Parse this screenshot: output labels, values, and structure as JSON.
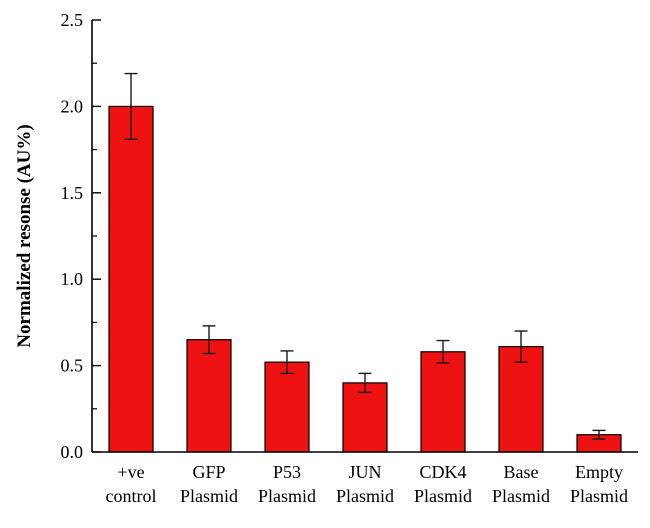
{
  "chart_data": {
    "type": "bar",
    "title": "",
    "xlabel": "",
    "ylabel": "Normalized resonse (AU%)",
    "categories": [
      [
        "+ve",
        "control"
      ],
      [
        "GFP",
        "Plasmid"
      ],
      [
        "P53",
        "Plasmid"
      ],
      [
        "JUN",
        "Plasmid"
      ],
      [
        "CDK4",
        "Plasmid"
      ],
      [
        "Base",
        "Plasmid"
      ],
      [
        "Empty",
        "Plasmid"
      ]
    ],
    "values": [
      2.0,
      0.65,
      0.52,
      0.4,
      0.58,
      0.61,
      0.1
    ],
    "errors": [
      0.19,
      0.08,
      0.065,
      0.055,
      0.065,
      0.09,
      0.025
    ],
    "ylim": [
      0,
      2.5
    ],
    "yticks": [
      0.0,
      0.5,
      1.0,
      1.5,
      2.0,
      2.5
    ],
    "ytick_labels": [
      "0.0",
      "0.5",
      "1.0",
      "1.5",
      "2.0",
      "2.5"
    ],
    "minor_tick_step": 0.25,
    "grid": false,
    "legend": "none",
    "bar_color": "#ee1212",
    "bar_edge_color": "#000000",
    "axis_color": "#000000",
    "error_bar_color": "#1a1a1a"
  }
}
